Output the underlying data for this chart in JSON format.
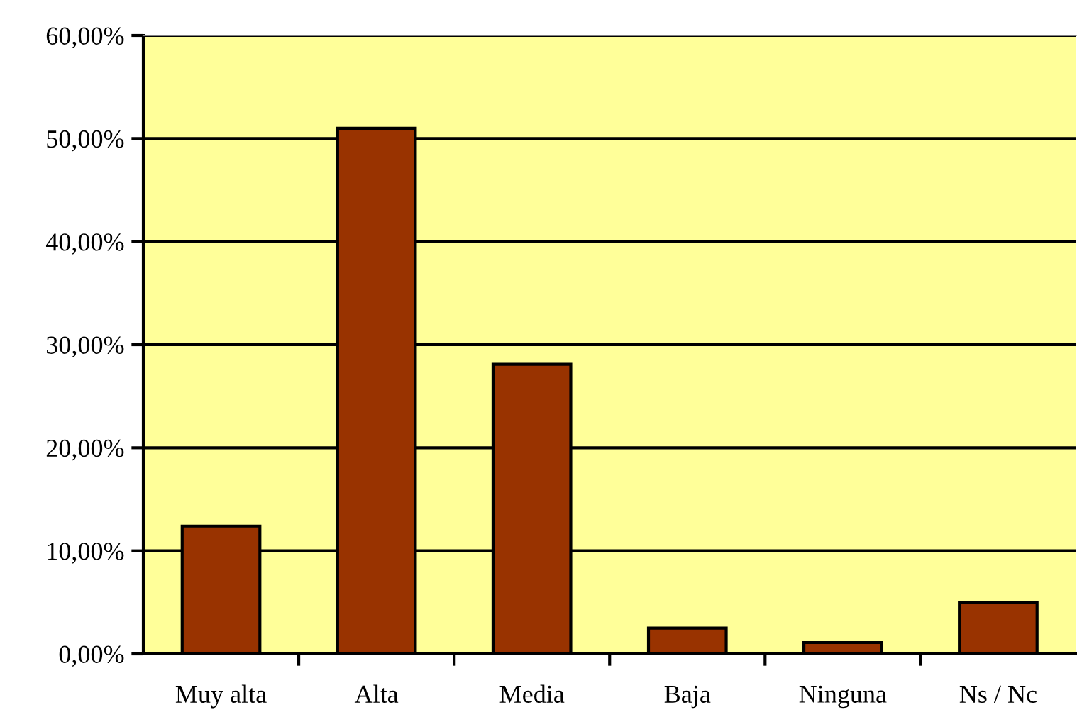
{
  "chart_data": {
    "type": "bar",
    "categories": [
      "Muy alta",
      "Alta",
      "Media",
      "Baja",
      "Ninguna",
      "Ns / Nc"
    ],
    "values": [
      12.4,
      51.0,
      28.1,
      2.5,
      1.1,
      5.0
    ],
    "color": "#993300",
    "ylim": [
      0,
      60
    ],
    "yticks": [
      {
        "value": 0,
        "label": "0,00%"
      },
      {
        "value": 10,
        "label": "10,00%"
      },
      {
        "value": 20,
        "label": "20,00%"
      },
      {
        "value": 30,
        "label": "30,00%"
      },
      {
        "value": 40,
        "label": "40,00%"
      },
      {
        "value": 50,
        "label": "50,00%"
      },
      {
        "value": 60,
        "label": "60,00%"
      }
    ],
    "grid": "y",
    "legend": false
  }
}
